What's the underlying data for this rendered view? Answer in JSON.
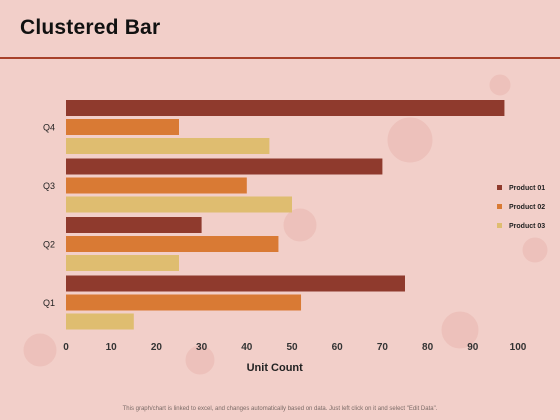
{
  "header": {
    "title": "Clustered Bar"
  },
  "footer": {
    "note": "This graph/chart is linked to excel, and changes automatically based on data. Just left click on it and select \"Edit Data\"."
  },
  "colors": {
    "product01": "#8f3a2d",
    "product02": "#d97a34",
    "product03": "#dfbd70",
    "rule": "#a8412a",
    "background": "#f2cfc9"
  },
  "chart_data": {
    "type": "bar",
    "orientation": "horizontal",
    "title": "",
    "xlabel": "Unit Count",
    "ylabel": "",
    "categories": [
      "Q4",
      "Q3",
      "Q2",
      "Q1"
    ],
    "series": [
      {
        "name": "Product 01",
        "values": [
          97,
          70,
          30,
          75
        ]
      },
      {
        "name": "Product 02",
        "values": [
          25,
          40,
          47,
          52
        ]
      },
      {
        "name": "Product 03",
        "values": [
          45,
          50,
          25,
          15
        ]
      }
    ],
    "xlim": [
      0,
      100
    ],
    "xticks": [
      "0",
      "10",
      "20",
      "30",
      "40",
      "50",
      "60",
      "70",
      "80",
      "90",
      "100"
    ],
    "grid": false,
    "legend": "right"
  }
}
